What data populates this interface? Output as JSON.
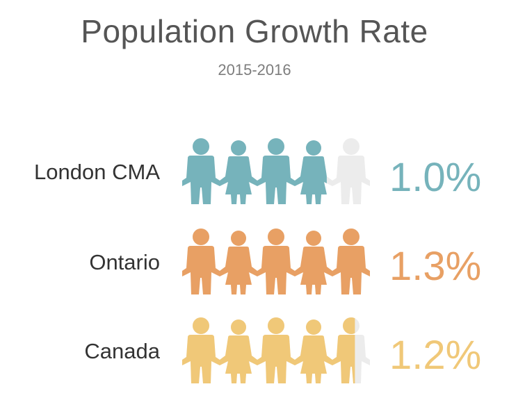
{
  "title": "Population Growth Rate",
  "subtitle": "2015-2016",
  "colors": {
    "london": "#76b3bb",
    "ontario": "#e8a064",
    "canada": "#f0c878",
    "empty": "#ececec"
  },
  "chart_data": {
    "type": "pictograph",
    "title": "Population Growth Rate",
    "subtitle": "2015-2016",
    "icons_per_row": 5,
    "icon_unit_percent": 0.26,
    "series": [
      {
        "name": "London CMA",
        "value": 1.0,
        "label": "1.0%",
        "filled_icons": 3.85,
        "color": "#76b3bb"
      },
      {
        "name": "Ontario",
        "value": 1.3,
        "label": "1.3%",
        "filled_icons": 5.0,
        "color": "#e8a064"
      },
      {
        "name": "Canada",
        "value": 1.2,
        "label": "1.2%",
        "filled_icons": 4.6,
        "color": "#f0c878"
      }
    ]
  }
}
